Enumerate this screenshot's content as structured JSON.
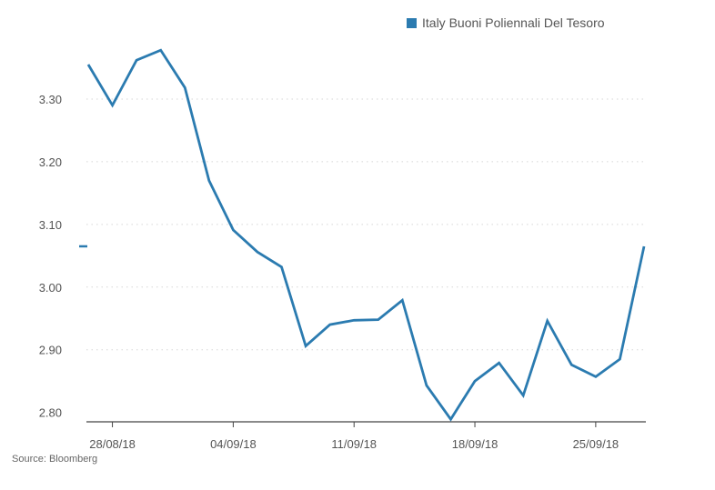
{
  "chart_data": {
    "type": "line",
    "title": "",
    "xlabel": "",
    "ylabel": "",
    "ylim": [
      2.785,
      3.4
    ],
    "yticks": [
      2.8,
      2.9,
      3.0,
      3.1,
      3.2,
      3.3
    ],
    "ytick_labels": [
      "2.80",
      "2.90",
      "3.00",
      "3.10",
      "3.20",
      "3.30"
    ],
    "grid": true,
    "legend": "top-right",
    "color": "#2b7bb0",
    "last_value_marker": 3.065,
    "xtick_labels": [
      {
        "label": "28/08/18",
        "date": "2018-08-28"
      },
      {
        "label": "04/09/18",
        "date": "2018-09-04"
      },
      {
        "label": "11/09/18",
        "date": "2018-09-11"
      },
      {
        "label": "18/09/18",
        "date": "2018-09-18"
      },
      {
        "label": "25/09/18",
        "date": "2018-09-25"
      }
    ],
    "series": [
      {
        "name": "Italy Buoni Poliennali Del Tesoro",
        "points": [
          {
            "x": "2018-08-27",
            "y": 3.355
          },
          {
            "x": "2018-08-28",
            "y": 3.29
          },
          {
            "x": "2018-08-29",
            "y": 3.362
          },
          {
            "x": "2018-08-30",
            "y": 3.378
          },
          {
            "x": "2018-08-31",
            "y": 3.318
          },
          {
            "x": "2018-09-03",
            "y": 3.17
          },
          {
            "x": "2018-09-04",
            "y": 3.091
          },
          {
            "x": "2018-09-05",
            "y": 3.056
          },
          {
            "x": "2018-09-06",
            "y": 3.032
          },
          {
            "x": "2018-09-07",
            "y": 2.906
          },
          {
            "x": "2018-09-10",
            "y": 2.94
          },
          {
            "x": "2018-09-11",
            "y": 2.947
          },
          {
            "x": "2018-09-12",
            "y": 2.948
          },
          {
            "x": "2018-09-13",
            "y": 2.979
          },
          {
            "x": "2018-09-14",
            "y": 2.843
          },
          {
            "x": "2018-09-17",
            "y": 2.789
          },
          {
            "x": "2018-09-18",
            "y": 2.85
          },
          {
            "x": "2018-09-19",
            "y": 2.879
          },
          {
            "x": "2018-09-20",
            "y": 2.827
          },
          {
            "x": "2018-09-21",
            "y": 2.946
          },
          {
            "x": "2018-09-24",
            "y": 2.876
          },
          {
            "x": "2018-09-25",
            "y": 2.857
          },
          {
            "x": "2018-09-26",
            "y": 2.885
          },
          {
            "x": "2018-09-27",
            "y": 3.065
          }
        ]
      }
    ]
  },
  "source": "Source: Bloomberg"
}
